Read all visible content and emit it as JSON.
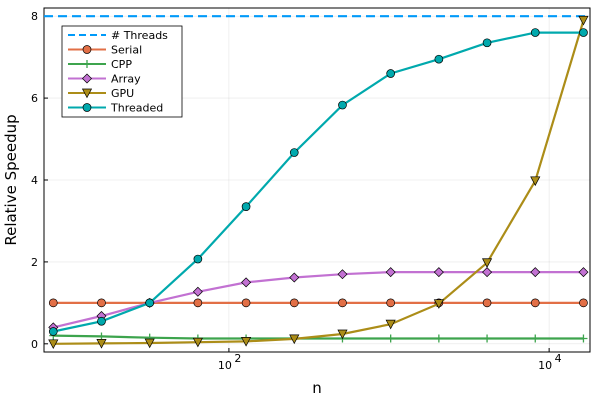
{
  "chart_data": {
    "type": "line",
    "title": "",
    "xlabel": "n",
    "ylabel": "Relative Speedup",
    "xscale": "log10",
    "xlim": [
      7,
      18000
    ],
    "ylim": [
      -0.2,
      8.2
    ],
    "xticks": [
      {
        "value": 100,
        "base": "10",
        "exp": "2"
      },
      {
        "value": 10000,
        "base": "10",
        "exp": "4"
      }
    ],
    "yticks": [
      0,
      2,
      4,
      6,
      8
    ],
    "grid": true,
    "legend_position": "top-left",
    "x": [
      8,
      16,
      32,
      64,
      128,
      256,
      512,
      1024,
      2048,
      4096,
      8192,
      16384
    ],
    "series": [
      {
        "name": "# Threads",
        "color": "#009af9",
        "style": "dashed",
        "marker": "none",
        "constant": 8
      },
      {
        "name": "Serial",
        "color": "#e26f46",
        "style": "solid",
        "marker": "circle",
        "values": [
          1,
          1,
          1,
          1,
          1,
          1,
          1,
          1,
          1,
          1,
          1,
          1
        ]
      },
      {
        "name": "CPP",
        "color": "#3da44d",
        "style": "solid",
        "marker": "plus",
        "values": [
          0.2,
          0.18,
          0.15,
          0.13,
          0.13,
          0.13,
          0.13,
          0.13,
          0.13,
          0.13,
          0.13,
          0.13
        ]
      },
      {
        "name": "Array",
        "color": "#c271d2",
        "style": "solid",
        "marker": "diamond",
        "values": [
          0.4,
          0.68,
          1.0,
          1.27,
          1.5,
          1.62,
          1.7,
          1.75,
          1.75,
          1.75,
          1.75,
          1.75
        ]
      },
      {
        "name": "GPU",
        "color": "#ac8d18",
        "style": "solid",
        "marker": "triangle-down",
        "values": [
          0.0,
          0.01,
          0.02,
          0.04,
          0.06,
          0.12,
          0.24,
          0.48,
          0.98,
          1.98,
          3.98,
          7.9
        ]
      },
      {
        "name": "Threaded",
        "color": "#00a9ad",
        "style": "solid",
        "marker": "circle",
        "values": [
          0.3,
          0.55,
          1.0,
          2.07,
          3.35,
          4.67,
          5.83,
          6.6,
          6.95,
          7.35,
          7.6,
          7.6
        ]
      }
    ]
  }
}
